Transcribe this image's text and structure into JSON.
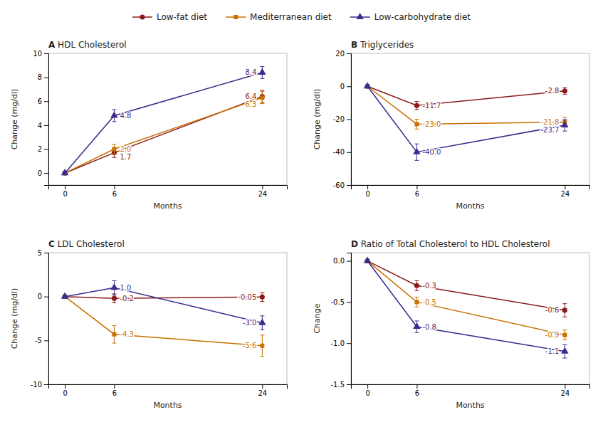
{
  "chart_data": [
    {
      "type": "line",
      "title": "A HDL Cholesterol",
      "xlabel": "Months",
      "ylabel": "Change (mg/dl)",
      "legend": "top",
      "x": [
        0,
        6,
        24
      ],
      "xlim": [
        -2,
        27
      ],
      "xticks": [
        0,
        6,
        24
      ],
      "ylim": [
        -1,
        10
      ],
      "yticks": [
        0,
        2,
        4,
        6,
        8,
        10
      ],
      "series": [
        {
          "name": "Low-fat diet",
          "color": "#8B1A1A",
          "marker": "circle",
          "values": [
            0,
            1.7,
            6.4
          ],
          "errors": [
            0,
            0.4,
            0.5
          ]
        },
        {
          "name": "Mediterranean diet",
          "color": "#C87000",
          "marker": "square",
          "values": [
            0,
            2.0,
            6.3
          ],
          "errors": [
            0,
            0.4,
            0.5
          ]
        },
        {
          "name": "Low-carbohydrate diet",
          "color": "#3B2B8C",
          "marker": "triangle",
          "values": [
            0,
            4.8,
            8.4
          ],
          "errors": [
            0,
            0.5,
            0.5
          ]
        }
      ],
      "annotations": [
        {
          "text": "1.7",
          "x": 6,
          "y": 1.7,
          "color": "#8B1A1A"
        },
        {
          "text": "2.0",
          "x": 6,
          "y": 2.0,
          "color": "#C87000"
        },
        {
          "text": "4.8",
          "x": 6,
          "y": 4.8,
          "color": "#3B2B8C"
        },
        {
          "text": "6.4",
          "x": 24,
          "y": 6.4,
          "color": "#8B1A1A"
        },
        {
          "text": "6.3",
          "x": 24,
          "y": 6.3,
          "color": "#C87000"
        },
        {
          "text": "8.4",
          "x": 24,
          "y": 8.4,
          "color": "#3B2B8C"
        }
      ]
    },
    {
      "type": "line",
      "title": "B Triglycerides",
      "xlabel": "Months",
      "ylabel": "Change (mg/dl)",
      "x": [
        0,
        6,
        24
      ],
      "xlim": [
        -2,
        27
      ],
      "xticks": [
        0,
        6,
        24
      ],
      "ylim": [
        -60,
        20
      ],
      "yticks": [
        -60,
        -40,
        -20,
        0,
        20
      ],
      "series": [
        {
          "name": "Low-fat diet",
          "color": "#8B1A1A",
          "marker": "circle",
          "values": [
            0,
            -11.7,
            -2.8
          ],
          "errors": [
            0,
            2.5,
            2.0
          ]
        },
        {
          "name": "Mediterranean diet",
          "color": "#C87000",
          "marker": "square",
          "values": [
            0,
            -23.0,
            -21.8
          ],
          "errors": [
            0,
            3.0,
            3.0
          ]
        },
        {
          "name": "Low-carbohydrate diet",
          "color": "#3B2B8C",
          "marker": "triangle",
          "values": [
            0,
            -40.0,
            -23.7
          ],
          "errors": [
            0,
            5.0,
            3.5
          ]
        }
      ],
      "annotations": [
        {
          "text": "-11.7",
          "x": 6,
          "y": -11.7,
          "color": "#8B1A1A"
        },
        {
          "text": "-23.0",
          "x": 6,
          "y": -23.0,
          "color": "#C87000"
        },
        {
          "text": "-40.0",
          "x": 6,
          "y": -40.0,
          "color": "#3B2B8C"
        },
        {
          "text": "-2.8",
          "x": 24,
          "y": -2.8,
          "color": "#8B1A1A"
        },
        {
          "text": "-21.8",
          "x": 24,
          "y": -21.8,
          "color": "#C87000"
        },
        {
          "text": "-23.7",
          "x": 24,
          "y": -23.7,
          "color": "#3B2B8C"
        }
      ]
    },
    {
      "type": "line",
      "title": "C LDL Cholesterol",
      "xlabel": "Months",
      "ylabel": "Change (mg/dl)",
      "x": [
        0,
        6,
        24
      ],
      "xlim": [
        -2,
        27
      ],
      "xticks": [
        0,
        6,
        24
      ],
      "ylim": [
        -10,
        5
      ],
      "yticks": [
        -10,
        -5,
        0,
        5
      ],
      "series": [
        {
          "name": "Low-fat diet",
          "color": "#8B1A1A",
          "marker": "circle",
          "values": [
            0,
            -0.2,
            -0.05
          ],
          "errors": [
            0,
            0.5,
            0.5
          ]
        },
        {
          "name": "Mediterranean diet",
          "color": "#C87000",
          "marker": "square",
          "values": [
            0,
            -4.3,
            -5.6
          ],
          "errors": [
            0,
            1.0,
            1.2
          ]
        },
        {
          "name": "Low-carbohydrate diet",
          "color": "#3B2B8C",
          "marker": "triangle",
          "values": [
            0,
            1.0,
            -3.0
          ],
          "errors": [
            0,
            0.8,
            0.8
          ]
        }
      ],
      "annotations": [
        {
          "text": "-0.2",
          "x": 6,
          "y": -0.2,
          "color": "#8B1A1A"
        },
        {
          "text": "-4.3",
          "x": 6,
          "y": -4.3,
          "color": "#C87000"
        },
        {
          "text": "1.0",
          "x": 6,
          "y": 1.0,
          "color": "#3B2B8C"
        },
        {
          "text": "-0.05",
          "x": 24,
          "y": -0.05,
          "color": "#8B1A1A"
        },
        {
          "text": "-5.6",
          "x": 24,
          "y": -5.6,
          "color": "#C87000"
        },
        {
          "text": "-3.0",
          "x": 24,
          "y": -3.0,
          "color": "#3B2B8C"
        }
      ]
    },
    {
      "type": "line",
      "title": "D Ratio of Total Cholesterol to HDL Cholesterol",
      "xlabel": "Months",
      "ylabel": "Change",
      "x": [
        0,
        6,
        24
      ],
      "xlim": [
        -2,
        27
      ],
      "xticks": [
        0,
        6,
        24
      ],
      "ylim": [
        -1.5,
        0.1
      ],
      "yticks": [
        -1.5,
        {
          "value": -1.0,
          "label": "-1.0"
        },
        -0.5,
        {
          "value": 0.0,
          "label": "0.0"
        }
      ],
      "series": [
        {
          "name": "Low-fat diet",
          "color": "#8B1A1A",
          "marker": "circle",
          "values": [
            0,
            -0.3,
            -0.6
          ],
          "errors": [
            0,
            0.06,
            0.08
          ]
        },
        {
          "name": "Mediterranean diet",
          "color": "#C87000",
          "marker": "square",
          "values": [
            0,
            -0.5,
            -0.9
          ],
          "errors": [
            0,
            0.06,
            0.06
          ]
        },
        {
          "name": "Low-carbohydrate diet",
          "color": "#3B2B8C",
          "marker": "triangle",
          "values": [
            0,
            -0.8,
            -1.1
          ],
          "errors": [
            0,
            0.07,
            0.08
          ]
        }
      ],
      "annotations": [
        {
          "text": "-0.3",
          "x": 6,
          "y": -0.3,
          "color": "#8B1A1A"
        },
        {
          "text": "-0.5",
          "x": 6,
          "y": -0.5,
          "color": "#C87000"
        },
        {
          "text": "-0.8",
          "x": 6,
          "y": -0.8,
          "color": "#3B2B8C"
        },
        {
          "text": "-0.6",
          "x": 24,
          "y": -0.6,
          "color": "#8B1A1A"
        },
        {
          "text": "-0.9",
          "x": 24,
          "y": -0.9,
          "color": "#C87000"
        },
        {
          "text": "-1.1",
          "x": 24,
          "y": -1.1,
          "color": "#3B2B8C"
        }
      ]
    }
  ]
}
